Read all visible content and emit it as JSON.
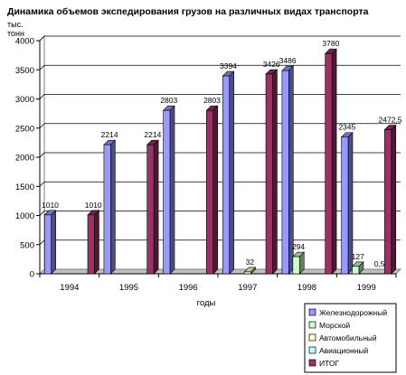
{
  "chart_data": {
    "type": "bar",
    "title": "Динамика объемов экспедирования грузов на различных видах транспорта",
    "ylabel": "тыс. тонн",
    "xlabel": "годы",
    "categories": [
      "1994",
      "1995",
      "1996",
      "1997",
      "1998",
      "1999"
    ],
    "ylim": [
      0,
      4000
    ],
    "yticks": [
      0,
      500,
      1000,
      1500,
      2000,
      2500,
      3000,
      3500,
      4000
    ],
    "grid": true,
    "legend_position": "bottom-right",
    "series": [
      {
        "name": "Железнодорожный",
        "color": "#9999ff",
        "values": [
          1010,
          2214,
          2803,
          3394,
          3486,
          2345
        ],
        "labels": [
          "1010",
          "2214",
          "2803",
          "3394",
          "3486",
          "2345"
        ]
      },
      {
        "name": "Морской",
        "color": "#ccffcc",
        "values": [
          0,
          0,
          0,
          0,
          294,
          127
        ],
        "labels": [
          "",
          "",
          "",
          "",
          "294",
          "127"
        ]
      },
      {
        "name": "Автомобильный",
        "color": "#ffffcc",
        "values": [
          0,
          0,
          0,
          32,
          0,
          0
        ],
        "labels": [
          "",
          "",
          "",
          "32",
          "",
          ""
        ]
      },
      {
        "name": "Авиационный",
        "color": "#ccffff",
        "values": [
          0,
          0,
          0,
          0,
          0,
          0.5
        ],
        "labels": [
          "",
          "",
          "",
          "",
          "",
          "0,5"
        ]
      },
      {
        "name": "ИТОГ",
        "color": "#993366",
        "values": [
          1010,
          2214,
          2803,
          3426,
          3780,
          2472.5
        ],
        "labels": [
          "1010",
          "2214",
          "2803",
          "3426",
          "3780",
          "2472,5"
        ]
      }
    ]
  }
}
